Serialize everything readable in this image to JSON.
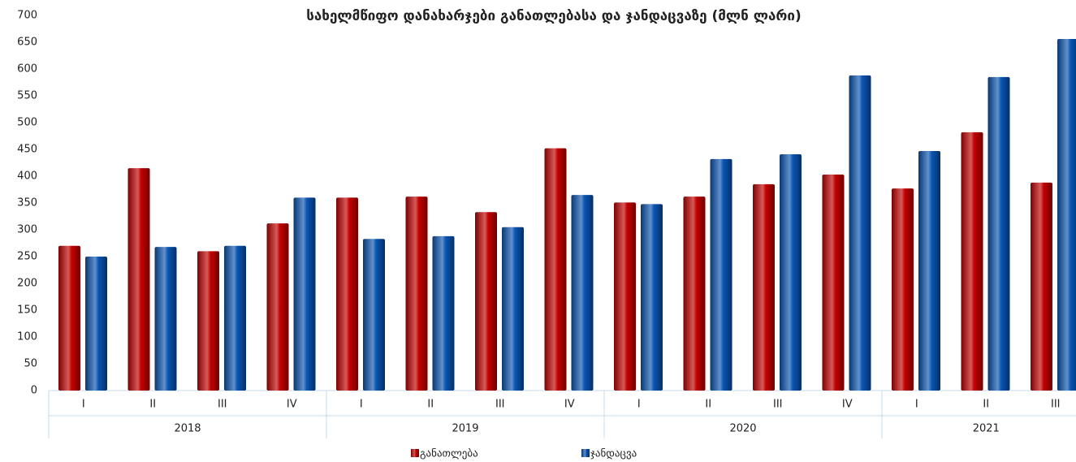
{
  "chart_data": {
    "type": "bar",
    "title": "სახელმწიფო დანახარჯები განათლებასა და ჯანდაცვაზე (მლნ ლარი)",
    "groups": [
      {
        "label": "2018",
        "categories": [
          "I",
          "II",
          "III",
          "IV"
        ]
      },
      {
        "label": "2019",
        "categories": [
          "I",
          "II",
          "III",
          "IV"
        ]
      },
      {
        "label": "2020",
        "categories": [
          "I",
          "II",
          "III",
          "IV"
        ]
      },
      {
        "label": "2021",
        "categories": [
          "I",
          "II",
          "III"
        ]
      }
    ],
    "series": [
      {
        "name": "განათლება",
        "color": "#c40000",
        "values": [
          270,
          415,
          260,
          312,
          360,
          362,
          333,
          452,
          351,
          362,
          385,
          403,
          377,
          482,
          388
        ]
      },
      {
        "name": "ჯანდაცვა",
        "color": "#0a56b4",
        "values": [
          250,
          268,
          270,
          360,
          283,
          288,
          305,
          365,
          348,
          432,
          441,
          588,
          447,
          585,
          656
        ]
      }
    ],
    "ylim": [
      0,
      700
    ],
    "yticks": [
      0,
      50,
      100,
      150,
      200,
      250,
      300,
      350,
      400,
      450,
      500,
      550,
      600,
      650,
      700
    ],
    "grid": false
  }
}
